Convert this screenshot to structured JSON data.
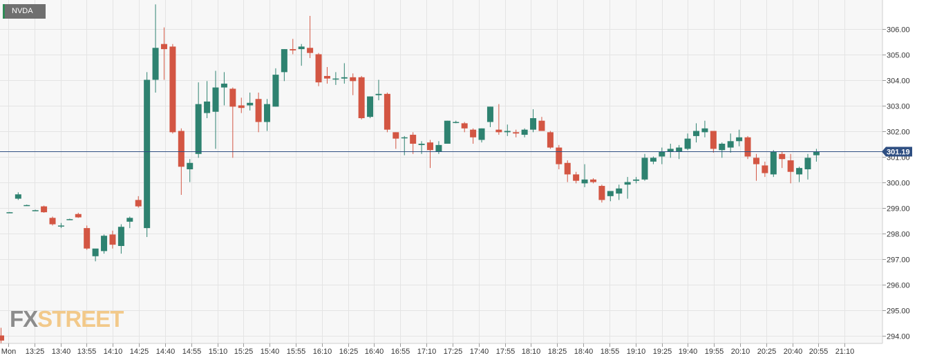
{
  "symbol": "NVDA",
  "logo": {
    "part1": "FX",
    "part2": "STREET"
  },
  "colors": {
    "up": "#2e8270",
    "down": "#d35643",
    "price_line": "#2f4f82",
    "grid": "#e4e4e4",
    "plot_bg": "#f7f7f7"
  },
  "chart_data": {
    "type": "candlestick",
    "last_price": "301.19",
    "ylim": [
      293.8,
      306.9
    ],
    "yticks": [
      "294.00",
      "295.00",
      "296.00",
      "297.00",
      "298.00",
      "299.00",
      "300.00",
      "301.00",
      "302.00",
      "303.00",
      "304.00",
      "305.00",
      "306.00"
    ],
    "xticks": [
      "Mon",
      "13:25",
      "13:40",
      "13:55",
      "14:10",
      "14:25",
      "14:40",
      "14:55",
      "15:10",
      "15:25",
      "15:40",
      "15:55",
      "16:10",
      "16:25",
      "16:40",
      "16:55",
      "17:10",
      "17:25",
      "17:40",
      "17:55",
      "18:10",
      "18:25",
      "18:40",
      "18:55",
      "19:10",
      "19:25",
      "19:40",
      "19:55",
      "20:10",
      "20:25",
      "20:40",
      "20:55",
      "21:10"
    ],
    "candles": [
      {
        "i": 0,
        "o": 294.0,
        "h": 294.3,
        "l": 293.7,
        "c": 293.8
      },
      {
        "i": 1,
        "o": 298.82,
        "h": 298.83,
        "l": 298.81,
        "c": 298.82
      },
      {
        "i": 2,
        "o": 299.35,
        "h": 299.6,
        "l": 299.3,
        "c": 299.52
      },
      {
        "i": 3,
        "o": 299.1,
        "h": 299.12,
        "l": 299.08,
        "c": 299.1
      },
      {
        "i": 4,
        "o": 298.9,
        "h": 298.92,
        "l": 298.88,
        "c": 298.9
      },
      {
        "i": 5,
        "o": 299.05,
        "h": 299.08,
        "l": 298.8,
        "c": 298.82
      },
      {
        "i": 6,
        "o": 298.6,
        "h": 298.65,
        "l": 298.3,
        "c": 298.35
      },
      {
        "i": 7,
        "o": 298.3,
        "h": 298.4,
        "l": 298.2,
        "c": 298.3
      },
      {
        "i": 8,
        "o": 298.55,
        "h": 298.57,
        "l": 298.53,
        "c": 298.55
      },
      {
        "i": 9,
        "o": 298.75,
        "h": 298.8,
        "l": 298.6,
        "c": 298.62
      },
      {
        "i": 10,
        "o": 298.2,
        "h": 298.3,
        "l": 297.35,
        "c": 297.4
      },
      {
        "i": 11,
        "o": 297.1,
        "h": 297.3,
        "l": 296.9,
        "c": 297.4
      },
      {
        "i": 12,
        "o": 297.3,
        "h": 297.95,
        "l": 297.2,
        "c": 297.9
      },
      {
        "i": 13,
        "o": 297.95,
        "h": 298.1,
        "l": 297.4,
        "c": 297.55
      },
      {
        "i": 14,
        "o": 297.5,
        "h": 298.35,
        "l": 297.2,
        "c": 298.25
      },
      {
        "i": 15,
        "o": 298.45,
        "h": 298.65,
        "l": 298.2,
        "c": 298.6
      },
      {
        "i": 16,
        "o": 299.3,
        "h": 299.45,
        "l": 299.0,
        "c": 299.05
      },
      {
        "i": 17,
        "o": 298.2,
        "h": 304.3,
        "l": 297.85,
        "c": 304.0
      },
      {
        "i": 18,
        "o": 304.0,
        "h": 306.95,
        "l": 303.5,
        "c": 305.25
      },
      {
        "i": 19,
        "o": 305.4,
        "h": 306.05,
        "l": 304.0,
        "c": 305.2
      },
      {
        "i": 20,
        "o": 305.3,
        "h": 305.4,
        "l": 301.9,
        "c": 301.95
      },
      {
        "i": 21,
        "o": 302.0,
        "h": 302.1,
        "l": 299.5,
        "c": 300.6
      },
      {
        "i": 22,
        "o": 300.5,
        "h": 300.9,
        "l": 300.0,
        "c": 300.75
      },
      {
        "i": 23,
        "o": 301.1,
        "h": 303.9,
        "l": 300.95,
        "c": 303.05
      },
      {
        "i": 24,
        "o": 302.7,
        "h": 303.95,
        "l": 302.5,
        "c": 303.15
      },
      {
        "i": 25,
        "o": 302.75,
        "h": 304.35,
        "l": 301.3,
        "c": 303.7
      },
      {
        "i": 26,
        "o": 303.7,
        "h": 304.3,
        "l": 303.0,
        "c": 303.85
      },
      {
        "i": 27,
        "o": 303.65,
        "h": 303.7,
        "l": 300.95,
        "c": 302.95
      },
      {
        "i": 28,
        "o": 303.0,
        "h": 303.3,
        "l": 302.7,
        "c": 302.9
      },
      {
        "i": 29,
        "o": 303.0,
        "h": 303.5,
        "l": 302.8,
        "c": 303.1
      },
      {
        "i": 30,
        "o": 303.25,
        "h": 303.5,
        "l": 301.95,
        "c": 302.35
      },
      {
        "i": 31,
        "o": 302.35,
        "h": 303.25,
        "l": 302.0,
        "c": 303.05
      },
      {
        "i": 32,
        "o": 302.95,
        "h": 304.45,
        "l": 302.95,
        "c": 304.2
      },
      {
        "i": 33,
        "o": 304.3,
        "h": 305.2,
        "l": 303.95,
        "c": 305.2
      },
      {
        "i": 34,
        "o": 305.2,
        "h": 305.6,
        "l": 305.0,
        "c": 305.15
      },
      {
        "i": 35,
        "o": 305.2,
        "h": 305.4,
        "l": 304.55,
        "c": 305.3
      },
      {
        "i": 36,
        "o": 305.25,
        "h": 306.5,
        "l": 304.85,
        "c": 305.05
      },
      {
        "i": 37,
        "o": 305.0,
        "h": 305.05,
        "l": 303.75,
        "c": 303.9
      },
      {
        "i": 38,
        "o": 304.15,
        "h": 304.5,
        "l": 303.85,
        "c": 304.05
      },
      {
        "i": 39,
        "o": 304.05,
        "h": 304.3,
        "l": 303.8,
        "c": 304.05
      },
      {
        "i": 40,
        "o": 304.05,
        "h": 304.65,
        "l": 303.85,
        "c": 304.1
      },
      {
        "i": 41,
        "o": 304.1,
        "h": 304.25,
        "l": 303.4,
        "c": 303.95
      },
      {
        "i": 42,
        "o": 304.1,
        "h": 304.15,
        "l": 302.45,
        "c": 302.5
      },
      {
        "i": 43,
        "o": 302.55,
        "h": 303.35,
        "l": 302.5,
        "c": 303.35
      },
      {
        "i": 44,
        "o": 303.4,
        "h": 304.0,
        "l": 303.2,
        "c": 303.45
      },
      {
        "i": 45,
        "o": 303.45,
        "h": 303.5,
        "l": 301.95,
        "c": 302.05
      },
      {
        "i": 46,
        "o": 301.95,
        "h": 301.95,
        "l": 301.3,
        "c": 301.7
      },
      {
        "i": 47,
        "o": 301.75,
        "h": 301.8,
        "l": 301.05,
        "c": 301.75
      },
      {
        "i": 48,
        "o": 301.85,
        "h": 301.95,
        "l": 301.1,
        "c": 301.5
      },
      {
        "i": 49,
        "o": 301.45,
        "h": 301.6,
        "l": 301.1,
        "c": 301.5
      },
      {
        "i": 50,
        "o": 301.55,
        "h": 301.65,
        "l": 300.55,
        "c": 301.25
      },
      {
        "i": 51,
        "o": 301.2,
        "h": 301.6,
        "l": 301.1,
        "c": 301.45
      },
      {
        "i": 52,
        "o": 301.5,
        "h": 302.4,
        "l": 301.5,
        "c": 302.4
      },
      {
        "i": 53,
        "o": 302.35,
        "h": 302.4,
        "l": 302.3,
        "c": 302.35
      },
      {
        "i": 54,
        "o": 302.3,
        "h": 302.35,
        "l": 301.95,
        "c": 302.1
      },
      {
        "i": 55,
        "o": 302.05,
        "h": 302.1,
        "l": 301.5,
        "c": 301.75
      },
      {
        "i": 56,
        "o": 301.65,
        "h": 302.1,
        "l": 301.55,
        "c": 302.1
      },
      {
        "i": 57,
        "o": 302.35,
        "h": 302.95,
        "l": 302.15,
        "c": 302.95
      },
      {
        "i": 58,
        "o": 302.05,
        "h": 303.05,
        "l": 301.85,
        "c": 301.95
      },
      {
        "i": 59,
        "o": 301.95,
        "h": 302.25,
        "l": 301.8,
        "c": 302.0
      },
      {
        "i": 60,
        "o": 301.95,
        "h": 302.05,
        "l": 301.75,
        "c": 301.9
      },
      {
        "i": 61,
        "o": 301.85,
        "h": 302.1,
        "l": 301.75,
        "c": 302.05
      },
      {
        "i": 62,
        "o": 302.05,
        "h": 302.85,
        "l": 301.95,
        "c": 302.5
      },
      {
        "i": 63,
        "o": 302.4,
        "h": 302.55,
        "l": 302.05,
        "c": 302.0
      },
      {
        "i": 64,
        "o": 301.95,
        "h": 302.0,
        "l": 301.3,
        "c": 301.35
      },
      {
        "i": 65,
        "o": 301.35,
        "h": 301.45,
        "l": 300.5,
        "c": 300.7
      },
      {
        "i": 66,
        "o": 300.75,
        "h": 300.85,
        "l": 300.0,
        "c": 300.3
      },
      {
        "i": 67,
        "o": 300.3,
        "h": 300.4,
        "l": 299.95,
        "c": 300.05
      },
      {
        "i": 68,
        "o": 299.95,
        "h": 300.7,
        "l": 299.8,
        "c": 300.1
      },
      {
        "i": 69,
        "o": 300.1,
        "h": 300.15,
        "l": 299.95,
        "c": 300.0
      },
      {
        "i": 70,
        "o": 299.85,
        "h": 299.9,
        "l": 299.2,
        "c": 299.3
      },
      {
        "i": 71,
        "o": 299.45,
        "h": 299.6,
        "l": 299.25,
        "c": 299.65
      },
      {
        "i": 72,
        "o": 299.55,
        "h": 299.9,
        "l": 299.3,
        "c": 299.75
      },
      {
        "i": 73,
        "o": 299.9,
        "h": 300.2,
        "l": 299.35,
        "c": 300.0
      },
      {
        "i": 74,
        "o": 300.05,
        "h": 300.2,
        "l": 299.95,
        "c": 300.1
      },
      {
        "i": 75,
        "o": 300.1,
        "h": 301.1,
        "l": 300.05,
        "c": 300.95
      },
      {
        "i": 76,
        "o": 300.8,
        "h": 301.0,
        "l": 300.7,
        "c": 300.95
      },
      {
        "i": 77,
        "o": 301.0,
        "h": 301.35,
        "l": 300.7,
        "c": 301.2
      },
      {
        "i": 78,
        "o": 301.2,
        "h": 301.5,
        "l": 300.95,
        "c": 301.3
      },
      {
        "i": 79,
        "o": 301.2,
        "h": 301.45,
        "l": 300.9,
        "c": 301.35
      },
      {
        "i": 80,
        "o": 301.3,
        "h": 301.9,
        "l": 301.25,
        "c": 301.7
      },
      {
        "i": 81,
        "o": 301.8,
        "h": 302.3,
        "l": 301.55,
        "c": 302.0
      },
      {
        "i": 82,
        "o": 301.95,
        "h": 302.4,
        "l": 301.75,
        "c": 302.1
      },
      {
        "i": 83,
        "o": 302.0,
        "h": 302.0,
        "l": 301.15,
        "c": 301.3
      },
      {
        "i": 84,
        "o": 301.25,
        "h": 301.55,
        "l": 300.95,
        "c": 301.5
      },
      {
        "i": 85,
        "o": 301.35,
        "h": 301.9,
        "l": 301.15,
        "c": 301.6
      },
      {
        "i": 86,
        "o": 301.6,
        "h": 302.05,
        "l": 301.4,
        "c": 301.75
      },
      {
        "i": 87,
        "o": 301.75,
        "h": 301.8,
        "l": 300.9,
        "c": 301.0
      },
      {
        "i": 88,
        "o": 300.95,
        "h": 301.1,
        "l": 300.05,
        "c": 300.7
      },
      {
        "i": 89,
        "o": 300.65,
        "h": 300.8,
        "l": 300.2,
        "c": 300.35
      },
      {
        "i": 90,
        "o": 300.3,
        "h": 301.25,
        "l": 300.2,
        "c": 301.2
      },
      {
        "i": 91,
        "o": 301.1,
        "h": 301.2,
        "l": 300.55,
        "c": 300.9
      },
      {
        "i": 92,
        "o": 300.85,
        "h": 301.1,
        "l": 299.95,
        "c": 300.4
      },
      {
        "i": 93,
        "o": 300.3,
        "h": 300.6,
        "l": 300.0,
        "c": 300.55
      },
      {
        "i": 94,
        "o": 300.5,
        "h": 301.1,
        "l": 300.1,
        "c": 300.95
      },
      {
        "i": 95,
        "o": 301.05,
        "h": 301.3,
        "l": 300.8,
        "c": 301.19
      }
    ]
  }
}
